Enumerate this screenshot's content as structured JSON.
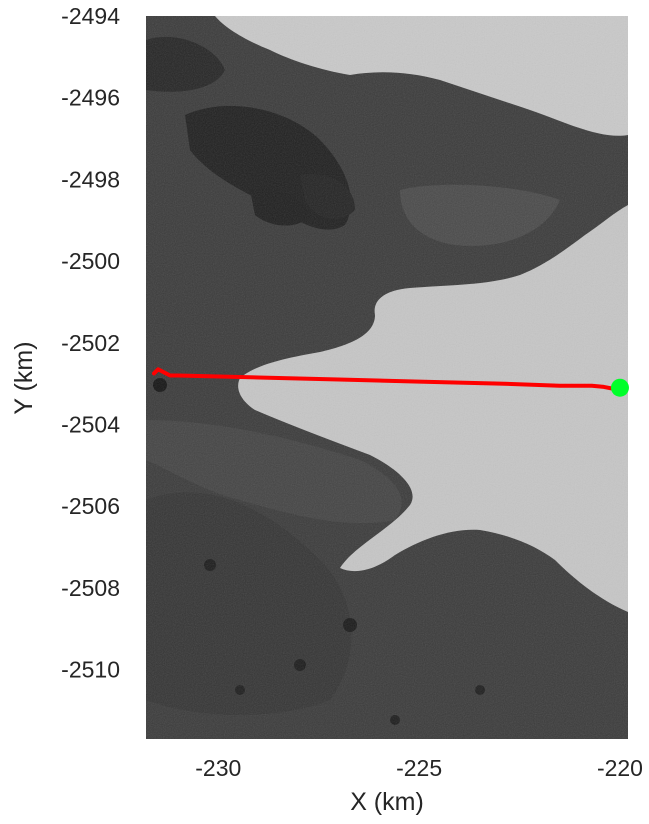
{
  "chart_data": {
    "type": "line",
    "title": "",
    "xlabel": "X (km)",
    "ylabel": "Y (km)",
    "xlim": [
      -231.8,
      -219.8
    ],
    "ylim": [
      -2511.7,
      -2494.0
    ],
    "xticks": [
      -230,
      -225,
      -220
    ],
    "yticks": [
      -2494,
      -2496,
      -2498,
      -2500,
      -2502,
      -2504,
      -2506,
      -2508,
      -2510
    ],
    "grid": false,
    "legend": "none",
    "background": "grayscale satellite image: dark rock and open water on the left, bright glacier ice tongue flowing in from the right",
    "series": [
      {
        "type": "line",
        "color": "#ff0000",
        "x": [
          -231.6,
          -231.5,
          -231.4,
          -231.3,
          -231.2,
          -231.0,
          -229.0,
          -227.0,
          -225.0,
          -223.0,
          -221.5,
          -220.7,
          -220.4,
          -220.2,
          -220.0
        ],
        "y": [
          -2502.75,
          -2502.65,
          -2502.7,
          -2502.75,
          -2502.8,
          -2502.8,
          -2502.85,
          -2502.9,
          -2502.95,
          -2503.0,
          -2503.05,
          -2503.05,
          -2503.08,
          -2503.12,
          -2503.15
        ]
      },
      {
        "type": "scatter",
        "color": "#00ff2a",
        "x": [
          -220.0
        ],
        "y": [
          -2503.1
        ]
      }
    ]
  }
}
